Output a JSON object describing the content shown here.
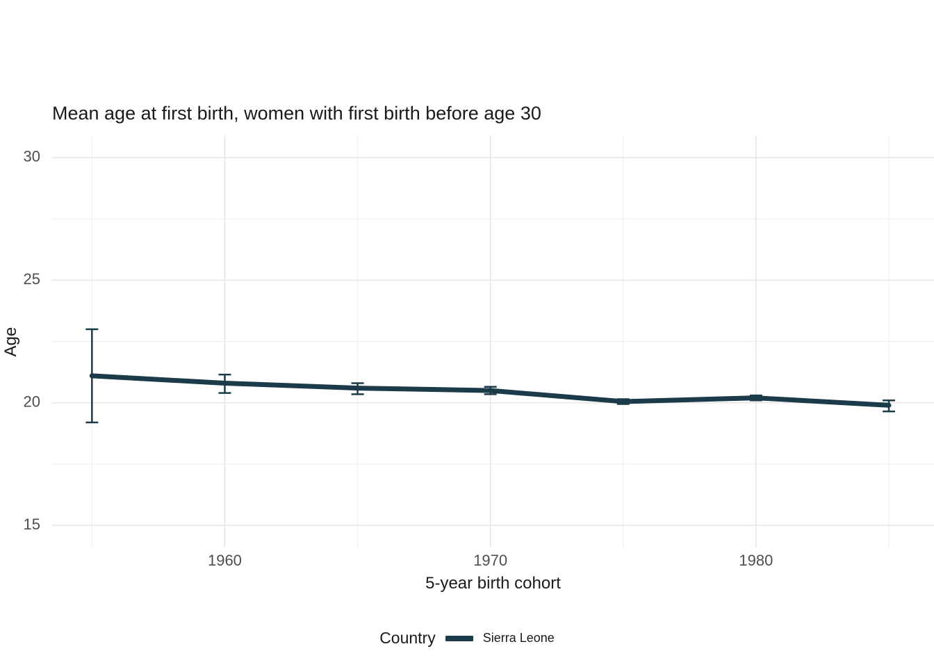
{
  "chart_data": {
    "type": "line",
    "title": "Mean age at first birth, women with first birth before age 30",
    "xlabel": "5-year birth cohort",
    "ylabel": "Age",
    "legend_title": "Country",
    "legend_position": "bottom",
    "grid": true,
    "x_range": [
      1953.5,
      1986.7
    ],
    "y_range": [
      14.1,
      30.9
    ],
    "x_ticks": [
      1960,
      1970,
      1980
    ],
    "x_minor_ticks": [
      1955,
      1965,
      1975,
      1985
    ],
    "y_ticks": [
      15,
      20,
      25,
      30
    ],
    "y_minor_ticks": [
      17.5,
      22.5,
      27.5
    ],
    "series": [
      {
        "name": "Sierra Leone",
        "color": "#1b3a4a",
        "x": [
          1955,
          1960,
          1965,
          1970,
          1975,
          1980,
          1985
        ],
        "y": [
          21.1,
          20.8,
          20.6,
          20.5,
          20.05,
          20.2,
          19.9
        ],
        "ymin": [
          19.2,
          20.4,
          20.35,
          20.35,
          19.95,
          20.1,
          19.65
        ],
        "ymax": [
          23.0,
          21.15,
          20.8,
          20.65,
          20.15,
          20.3,
          20.1
        ]
      }
    ]
  },
  "colors": {
    "background": "#ffffff",
    "grid_major": "#e6e6e6",
    "grid_minor": "#ededed",
    "tick_label": "#4d4d4d",
    "text": "#1a1a1a"
  }
}
